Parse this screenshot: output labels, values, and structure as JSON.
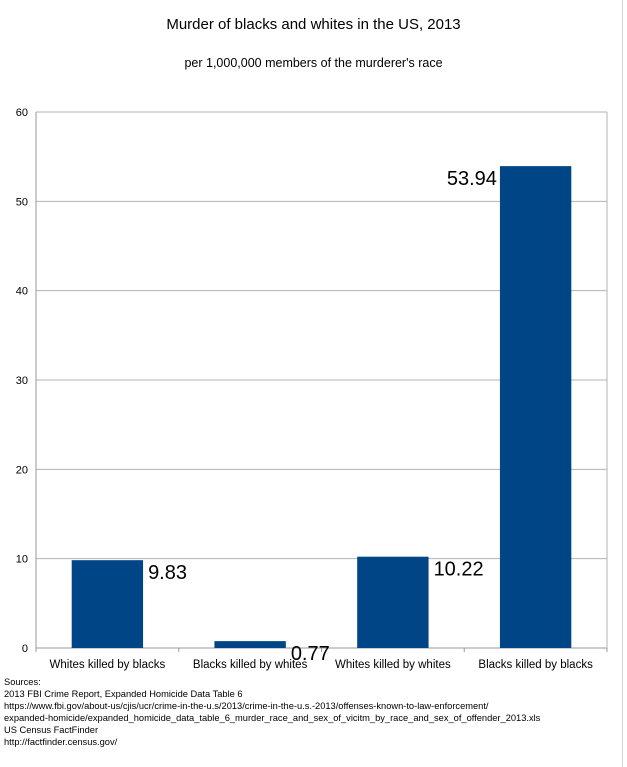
{
  "title": "Murder of blacks and whites in the US, 2013",
  "subtitle": "per 1,000,000 members of the murderer's race",
  "chart_data": {
    "type": "bar",
    "title": "Murder of blacks and whites in the US, 2013",
    "subtitle": "per 1,000,000 members of the murderer's race",
    "categories": [
      "Whites killed by blacks",
      "Blacks killed by whites",
      "Whites killed by whites",
      "Blacks killed by blacks"
    ],
    "values": [
      9.83,
      0.77,
      10.22,
      53.94
    ],
    "value_labels": [
      "9.83",
      "0.77",
      "10.22",
      "53.94"
    ],
    "xlabel": "",
    "ylabel": "",
    "ylim": [
      0,
      60
    ],
    "yticks": [
      0,
      10,
      20,
      30,
      40,
      50,
      60
    ],
    "grid": true,
    "legend": "none",
    "bar_color": "#004586"
  },
  "sources": {
    "heading": "Sources:",
    "lines": [
      "2013 FBI Crime Report, Expanded Homicide Data Table 6",
      "https://www.fbi.gov/about-us/cjis/ucr/crime-in-the-u.s/2013/crime-in-the-u.s.-2013/offenses-known-to-law-enforcement/",
      "expanded-homicide/expanded_homicide_data_table_6_murder_race_and_sex_of_vicitm_by_race_and_sex_of_offender_2013.xls",
      "US Census FactFinder",
      "http://factfinder.census.gov/"
    ]
  }
}
